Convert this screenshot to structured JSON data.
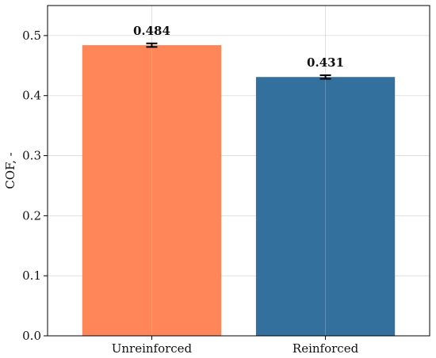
{
  "chart_data": {
    "type": "bar",
    "title": "",
    "xlabel": "",
    "ylabel": "COF, -",
    "categories": [
      "Unreinforced",
      "Reinforced"
    ],
    "values": [
      0.484,
      0.431
    ],
    "value_labels": [
      "0.484",
      "0.431"
    ],
    "error": [
      0.003,
      0.003
    ],
    "colors": [
      "#ff8659",
      "#34709e"
    ],
    "ylim": [
      0,
      0.55
    ],
    "yticks": [
      0.0,
      0.1,
      0.2,
      0.3,
      0.4,
      0.5
    ],
    "ytick_labels": [
      "0.0",
      "0.1",
      "0.2",
      "0.3",
      "0.4",
      "0.5"
    ],
    "grid": true,
    "legend": "none"
  }
}
